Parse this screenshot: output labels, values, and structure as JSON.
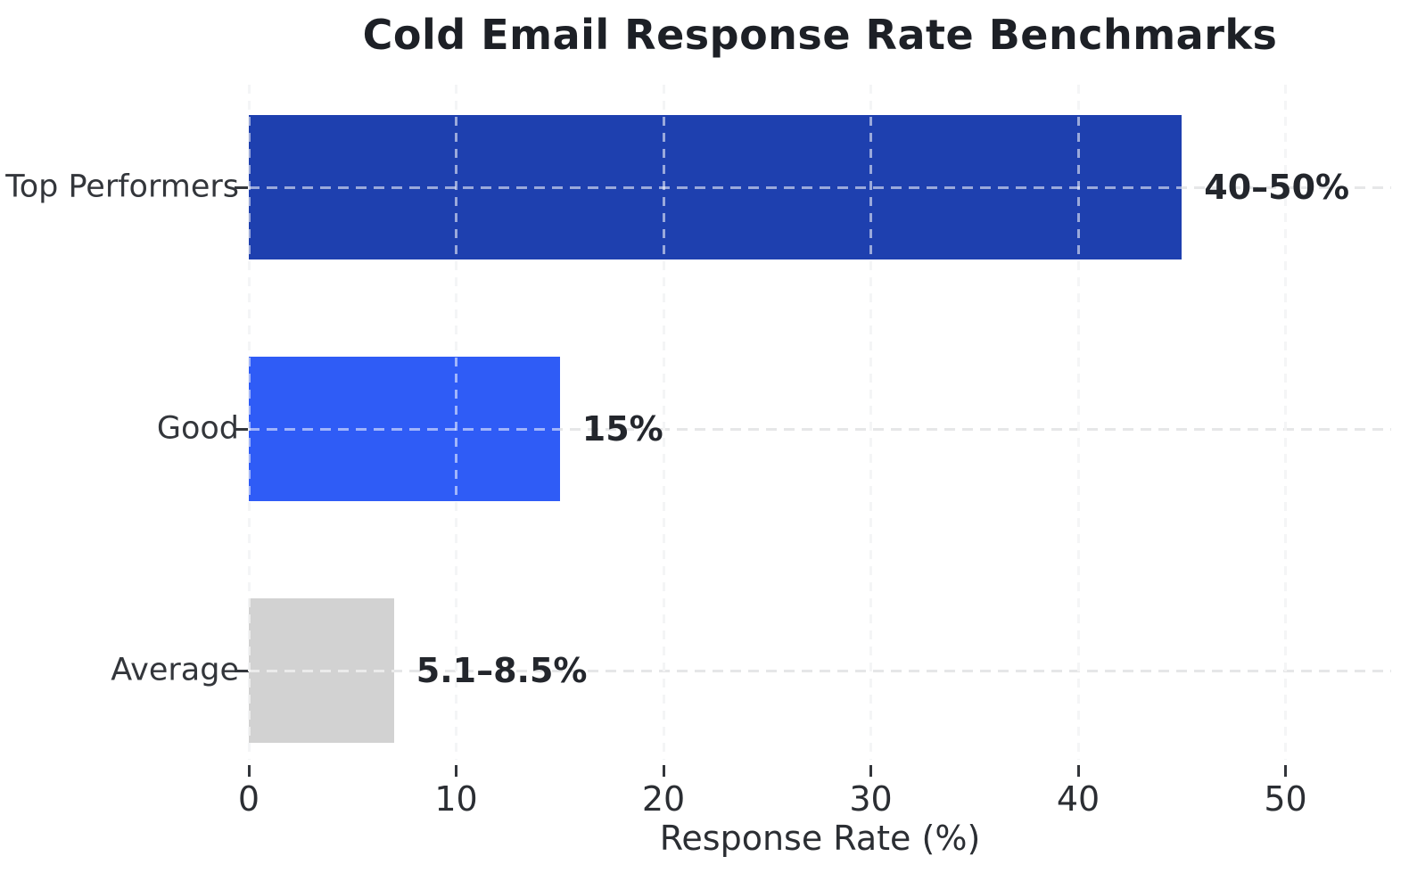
{
  "chart_data": {
    "type": "bar",
    "orientation": "horizontal",
    "title": "Cold Email Response Rate Benchmarks",
    "xlabel": "Response Rate (%)",
    "categories": [
      "Top Performers",
      "Good",
      "Average"
    ],
    "values": [
      45,
      15,
      7
    ],
    "value_labels": [
      "40–50%",
      "15%",
      "5.1–8.5%"
    ],
    "bar_colors": [
      "#1e40af",
      "#2f5cf6",
      "#d2d2d2"
    ],
    "x_ticks": [
      0,
      10,
      20,
      30,
      40,
      50
    ],
    "xlim": [
      0,
      55.1
    ],
    "grid": "dashed",
    "legend": "none",
    "background_color": "#ffffff"
  }
}
